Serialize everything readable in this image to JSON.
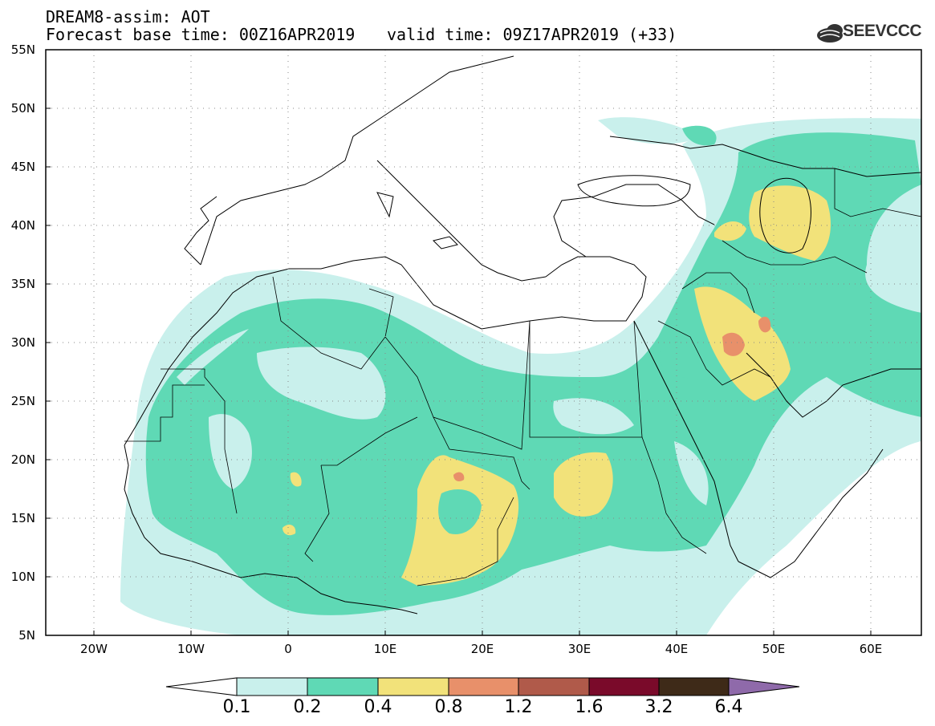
{
  "header": {
    "title_line1": "DREAM8-assim: AOT",
    "title_line2": "Forecast base time: 00Z16APR2019",
    "valid_time": "valid time: 09Z17APR2019 (+33)",
    "logo_text": "SEEVCCC"
  },
  "axes": {
    "lat_labels": [
      "55N",
      "50N",
      "45N",
      "40N",
      "35N",
      "30N",
      "25N",
      "20N",
      "15N",
      "10N",
      "5N"
    ],
    "lon_labels": [
      "20W",
      "10W",
      "0",
      "10E",
      "20E",
      "30E",
      "40E",
      "50E",
      "60E"
    ]
  },
  "colorbar": {
    "labels": [
      "0.1",
      "0.2",
      "0.4",
      "0.8",
      "1.2",
      "1.6",
      "3.2",
      "6.4"
    ],
    "colors": [
      "#ffffff",
      "#c9f0ec",
      "#5fd9b5",
      "#f2e27a",
      "#e8906a",
      "#b05a4a",
      "#7a0a2a",
      "#3e2a18",
      "#8f6aaa"
    ]
  },
  "map_style": {
    "aot_colors": {
      "c01": "#c9f0ec",
      "c02": "#5fd9b5",
      "c04": "#f2e27a",
      "c08": "#e8906a",
      "c12": "#c8604f"
    }
  }
}
